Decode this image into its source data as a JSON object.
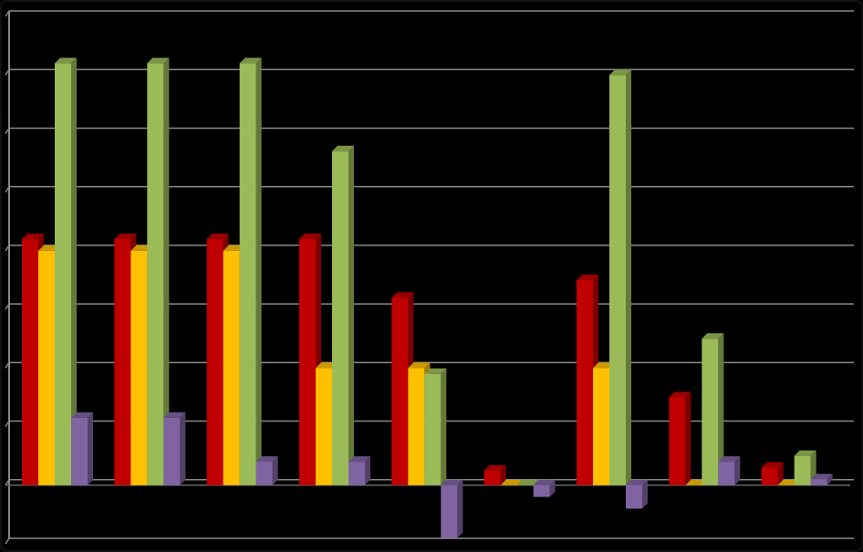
{
  "chart_data": {
    "type": "bar3d",
    "categories": [
      null,
      null,
      null,
      null,
      null,
      null,
      null,
      null,
      null
    ],
    "series": [
      {
        "color": "#c00000",
        "values": [
          4.2,
          4.2,
          4.2,
          4.2,
          3.2,
          0.25,
          3.5,
          1.5,
          0.3
        ]
      },
      {
        "color": "#ffc000",
        "values": [
          4.0,
          4.0,
          4.0,
          2.0,
          2.0,
          0,
          2.0,
          0,
          0
        ]
      },
      {
        "color": "#9bbb59",
        "values": [
          7.2,
          7.2,
          7.2,
          5.7,
          1.9,
          0,
          7.0,
          2.5,
          0.5
        ]
      },
      {
        "color": "#8064a2",
        "values": [
          1.15,
          1.15,
          0.4,
          0.4,
          -0.9,
          -0.2,
          -0.4,
          0.4,
          0.1
        ]
      }
    ],
    "ylim": [
      -1,
      8
    ],
    "yticks": [
      -1,
      0,
      1,
      2,
      3,
      4,
      5,
      6,
      7,
      8
    ],
    "grid": true
  }
}
